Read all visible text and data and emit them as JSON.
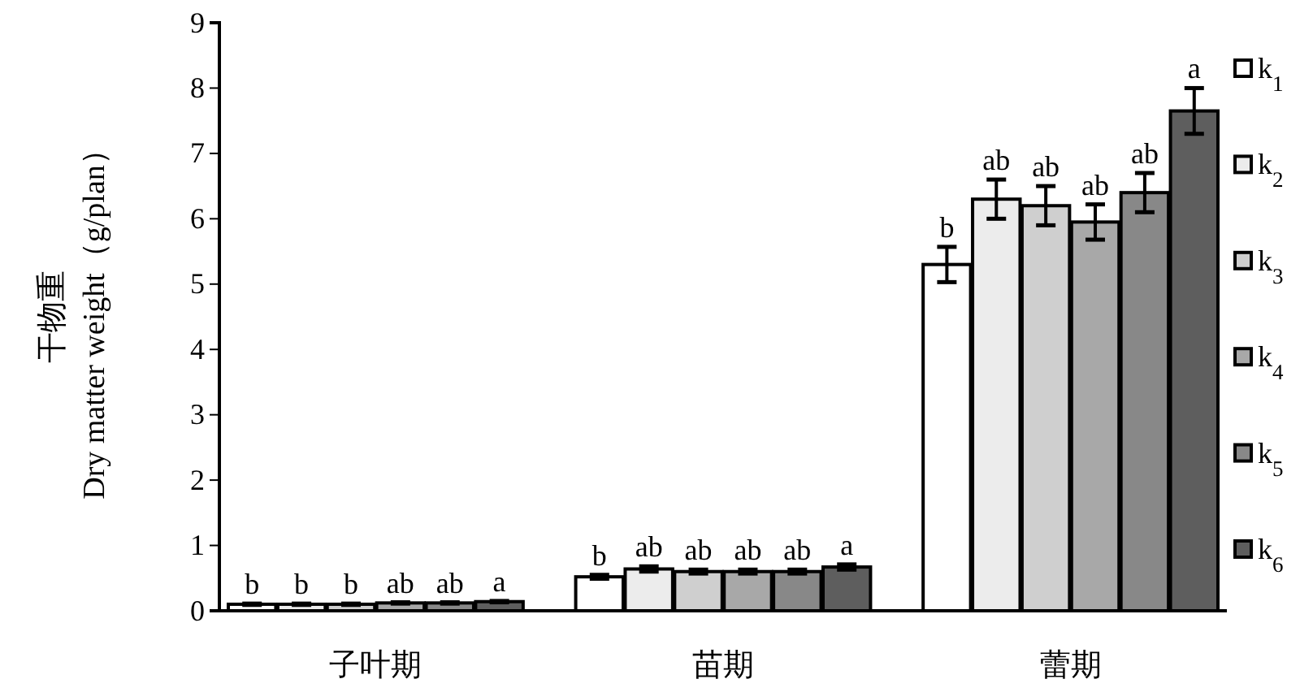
{
  "chart_data": {
    "type": "bar",
    "ylabel": "干物重\nDry matter weight（g/plan）",
    "categories": [
      "子叶期",
      "苗期",
      "蕾期"
    ],
    "ylim": [
      0,
      9
    ],
    "yticks": [
      0,
      1,
      2,
      3,
      4,
      5,
      6,
      7,
      8,
      9
    ],
    "grid": false,
    "legend": "right",
    "series": [
      {
        "name": "k$_{1}$",
        "color": "#ffffff",
        "values": [
          0.1,
          0.52,
          5.3
        ],
        "errors": [
          0.01,
          0.03,
          0.27
        ],
        "value_labels": [
          "b",
          "b",
          "b"
        ]
      },
      {
        "name": "k$_{2}$",
        "color": "#ececec",
        "values": [
          0.1,
          0.64,
          6.3
        ],
        "errors": [
          0.01,
          0.04,
          0.3
        ],
        "value_labels": [
          "b",
          "ab",
          "ab"
        ]
      },
      {
        "name": "k$_{3}$",
        "color": "#cfcfcf",
        "values": [
          0.1,
          0.6,
          6.2
        ],
        "errors": [
          0.01,
          0.03,
          0.3
        ],
        "value_labels": [
          "b",
          "ab",
          "ab"
        ]
      },
      {
        "name": "k$_{4}$",
        "color": "#a8a8a8",
        "values": [
          0.12,
          0.6,
          5.95
        ],
        "errors": [
          0.01,
          0.03,
          0.27
        ],
        "value_labels": [
          "ab",
          "ab",
          "ab"
        ]
      },
      {
        "name": "k$_{5}$",
        "color": "#888888",
        "values": [
          0.12,
          0.6,
          6.4
        ],
        "errors": [
          0.01,
          0.03,
          0.3
        ],
        "value_labels": [
          "ab",
          "ab",
          "ab"
        ]
      },
      {
        "name": "k$_{6}$",
        "color": "#5e5e5e",
        "values": [
          0.14,
          0.67,
          7.65
        ],
        "errors": [
          0.01,
          0.04,
          0.35
        ],
        "value_labels": [
          "a",
          "a",
          "a"
        ]
      }
    ]
  }
}
